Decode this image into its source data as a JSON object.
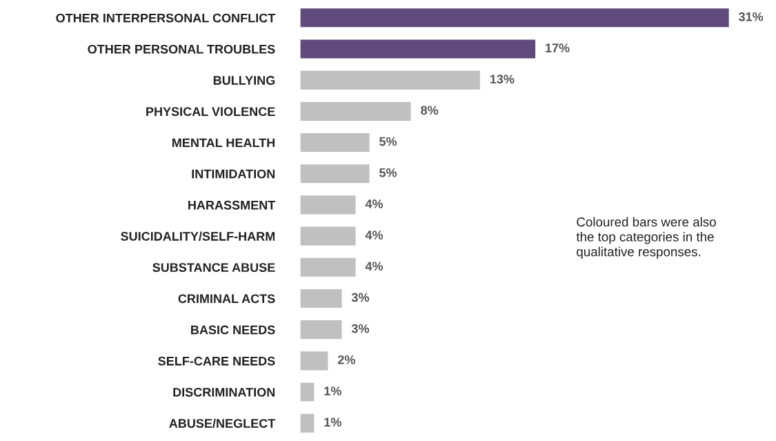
{
  "chart_data": {
    "type": "bar",
    "orientation": "horizontal",
    "categories": [
      "OTHER INTERPERSONAL CONFLICT",
      "OTHER PERSONAL TROUBLES",
      "BULLYING",
      "PHYSICAL VIOLENCE",
      "MENTAL HEALTH",
      "INTIMIDATION",
      "HARASSMENT",
      "SUICIDALITY/SELF-HARM",
      "SUBSTANCE ABUSE",
      "CRIMINAL ACTS",
      "BASIC NEEDS",
      "SELF-CARE NEEDS",
      "DISCRIMINATION",
      "ABUSE/NEGLECT"
    ],
    "values": [
      31,
      17,
      13,
      8,
      5,
      5,
      4,
      4,
      4,
      3,
      3,
      2,
      1,
      1
    ],
    "value_labels": [
      "31%",
      "17%",
      "13%",
      "8%",
      "5%",
      "5%",
      "4%",
      "4%",
      "4%",
      "3%",
      "3%",
      "2%",
      "1%",
      "1%"
    ],
    "colors": [
      "#5f4a7b",
      "#5f4a7b",
      "#c0c0c0",
      "#c0c0c0",
      "#c0c0c0",
      "#c0c0c0",
      "#c0c0c0",
      "#c0c0c0",
      "#c0c0c0",
      "#c0c0c0",
      "#c0c0c0",
      "#c0c0c0",
      "#c0c0c0",
      "#c0c0c0"
    ],
    "annotations": [
      "Coloured bars were also\nthe top categories in the\nqualitative responses."
    ],
    "legend": false,
    "grid": false,
    "tick_labels": "y"
  }
}
